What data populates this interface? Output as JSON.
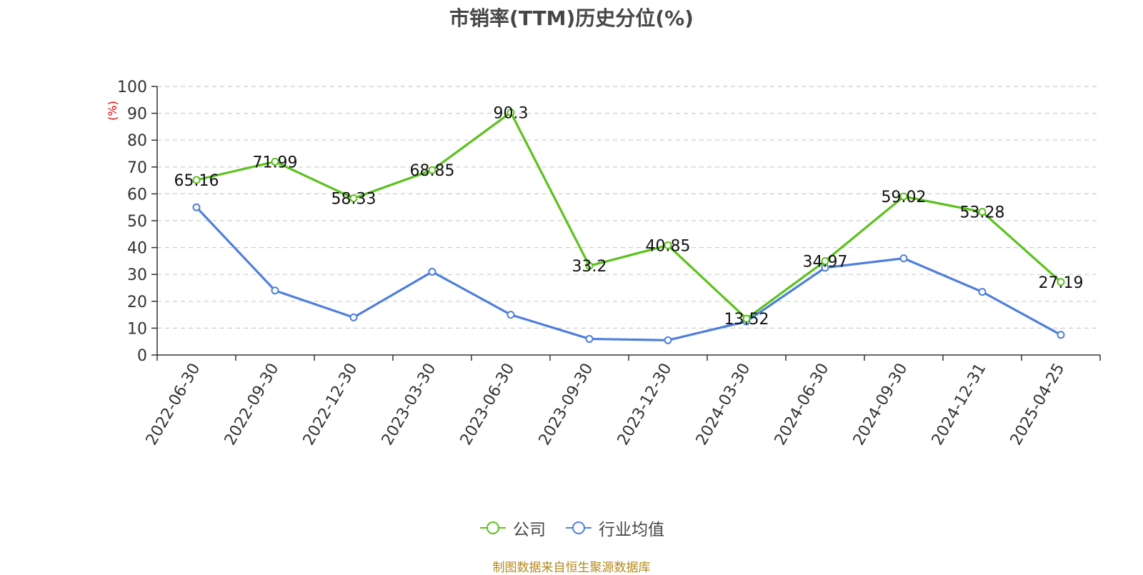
{
  "title": "市销率(TTM)历史分位(%)",
  "source_note": "制图数据来自恒生聚源数据库",
  "colors": {
    "company": "#5bc21d",
    "industry": "#4f7fdc",
    "axis": "#333333",
    "grid": "#cccccc",
    "ylabel": "#e00000"
  },
  "chart_data": {
    "type": "line",
    "title": "市销率(TTM)历史分位(%)",
    "ylabel": "(%)",
    "xlabel": "",
    "ylim": [
      0,
      100
    ],
    "yticks": [
      0,
      10,
      20,
      30,
      40,
      50,
      60,
      70,
      80,
      90,
      100
    ],
    "grid": true,
    "legend_position": "bottom",
    "categories": [
      "2022-06-30",
      "2022-09-30",
      "2022-12-30",
      "2023-03-30",
      "2023-06-30",
      "2023-09-30",
      "2023-12-30",
      "2024-03-30",
      "2024-06-30",
      "2024-09-30",
      "2024-12-31",
      "2025-04-25"
    ],
    "series": [
      {
        "name": "公司",
        "color": "#5bc21d",
        "show_labels": true,
        "values": [
          65.16,
          71.99,
          58.33,
          68.85,
          90.3,
          33.2,
          40.85,
          13.52,
          34.97,
          59.02,
          53.28,
          27.19
        ]
      },
      {
        "name": "行业均值",
        "color": "#4f7fdc",
        "show_labels": false,
        "values": [
          55,
          24,
          14,
          31,
          15,
          6,
          5.5,
          12.5,
          32.5,
          36,
          23.5,
          7.5
        ]
      }
    ]
  }
}
